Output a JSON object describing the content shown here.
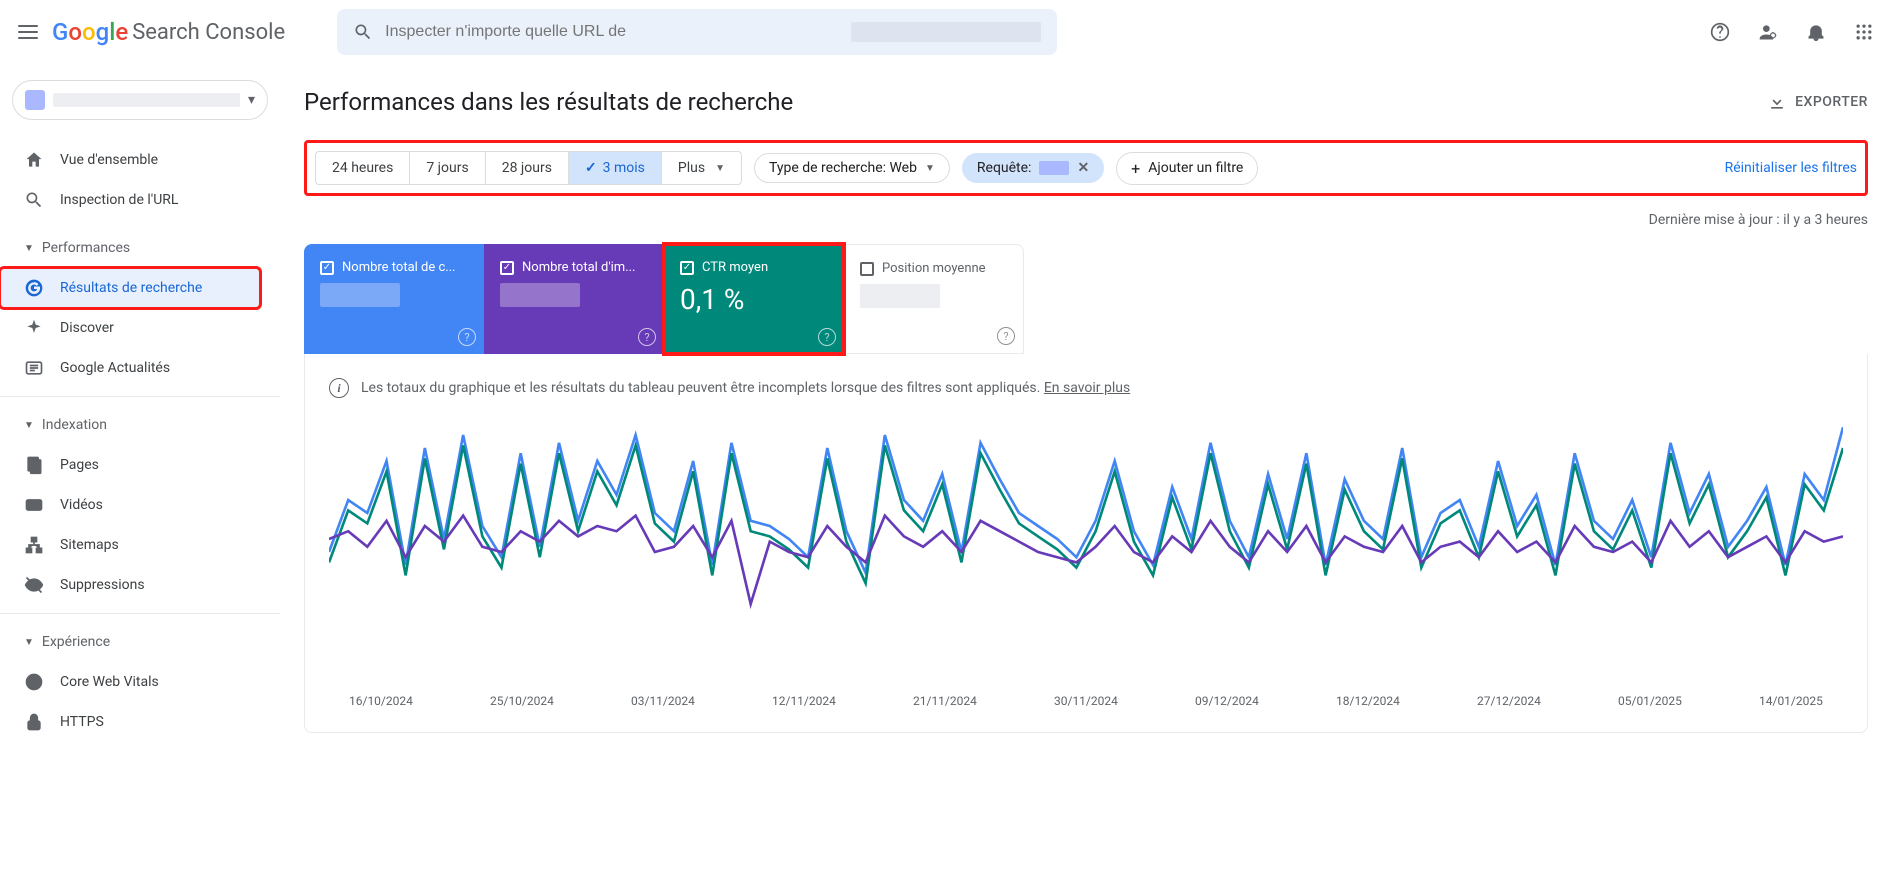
{
  "header": {
    "product_name": "Search Console",
    "search_placeholder": "Inspecter n'importe quelle URL de"
  },
  "page": {
    "title": "Performances dans les résultats de recherche",
    "export_label": "EXPORTER",
    "updated_text": "Dernière mise à jour : il y a 3 heures"
  },
  "sidebar": {
    "overview": "Vue d'ensemble",
    "url_inspection": "Inspection de l'URL",
    "section_performance": "Performances",
    "search_results": "Résultats de recherche",
    "discover": "Discover",
    "google_news": "Google Actualités",
    "section_indexing": "Indexation",
    "pages": "Pages",
    "videos": "Vidéos",
    "sitemaps": "Sitemaps",
    "removals": "Suppressions",
    "section_experience": "Expérience",
    "core_web_vitals": "Core Web Vitals",
    "https": "HTTPS"
  },
  "filters": {
    "date_options": [
      "24 heures",
      "7 jours",
      "28 jours",
      "3 mois",
      "Plus"
    ],
    "date_selected": "3 mois",
    "search_type_label": "Type de recherche: Web",
    "query_label": "Requête:",
    "add_filter_label": "Ajouter un filtre",
    "reset_label": "Réinitialiser les filtres"
  },
  "metrics": {
    "clicks": {
      "label": "Nombre total de c...",
      "checked": true,
      "color": "#4285f4"
    },
    "impressions": {
      "label": "Nombre total d'im...",
      "checked": true,
      "color": "#673ab7"
    },
    "ctr": {
      "label": "CTR moyen",
      "value": "0,1 %",
      "checked": true,
      "color": "#00897b"
    },
    "position": {
      "label": "Position moyenne",
      "checked": false,
      "color": "#ffffff"
    }
  },
  "chart": {
    "notice_text": "Les totaux du graphique et les résultats du tableau peuvent être incomplets lorsque des filtres sont appliqués.",
    "notice_link": "En savoir plus",
    "x_labels": [
      "16/10/2024",
      "25/10/2024",
      "03/11/2024",
      "12/11/2024",
      "21/11/2024",
      "30/11/2024",
      "09/12/2024",
      "18/12/2024",
      "27/12/2024",
      "05/01/2025",
      "14/01/2025"
    ],
    "series": {
      "blue": {
        "color": "#4285f4",
        "values": [
          50,
          70,
          65,
          85,
          45,
          90,
          55,
          95,
          60,
          48,
          88,
          52,
          92,
          62,
          85,
          72,
          95,
          65,
          58,
          85,
          45,
          92,
          62,
          60,
          55,
          48,
          90,
          58,
          42,
          95,
          70,
          62,
          80,
          50,
          92,
          78,
          65,
          60,
          55,
          48,
          62,
          85,
          58,
          45,
          75,
          55,
          92,
          62,
          48,
          80,
          55,
          88,
          45,
          78,
          62,
          55,
          90,
          48,
          65,
          70,
          52,
          85,
          60,
          72,
          45,
          88,
          62,
          55,
          70,
          48,
          92,
          65,
          80,
          52,
          62,
          75,
          45,
          80,
          70,
          98
        ]
      },
      "green": {
        "color": "#00897b",
        "values": [
          46,
          66,
          61,
          81,
          41,
          86,
          51,
          91,
          56,
          44,
          84,
          48,
          88,
          58,
          81,
          68,
          91,
          61,
          54,
          81,
          41,
          88,
          58,
          56,
          51,
          44,
          86,
          54,
          38,
          91,
          66,
          58,
          76,
          46,
          88,
          74,
          61,
          56,
          51,
          44,
          58,
          81,
          54,
          41,
          71,
          51,
          88,
          58,
          44,
          76,
          51,
          84,
          41,
          74,
          58,
          51,
          86,
          44,
          61,
          66,
          48,
          81,
          56,
          68,
          41,
          84,
          58,
          51,
          66,
          44,
          88,
          61,
          76,
          48,
          58,
          71,
          41,
          76,
          66,
          90
        ]
      },
      "purple": {
        "color": "#673ab7",
        "values": [
          55,
          58,
          52,
          62,
          48,
          60,
          54,
          64,
          52,
          50,
          58,
          54,
          62,
          56,
          60,
          58,
          64,
          50,
          52,
          60,
          48,
          62,
          30,
          54,
          50,
          48,
          60,
          52,
          46,
          64,
          56,
          52,
          58,
          50,
          62,
          58,
          54,
          50,
          48,
          46,
          52,
          60,
          50,
          46,
          56,
          50,
          62,
          52,
          46,
          58,
          50,
          60,
          46,
          56,
          52,
          50,
          60,
          46,
          52,
          54,
          48,
          58,
          50,
          54,
          46,
          60,
          52,
          50,
          54,
          46,
          62,
          52,
          58,
          48,
          52,
          56,
          46,
          58,
          54,
          56
        ]
      }
    },
    "y_range": [
      0,
      100
    ]
  },
  "highlight_color": "#ff1a1a"
}
